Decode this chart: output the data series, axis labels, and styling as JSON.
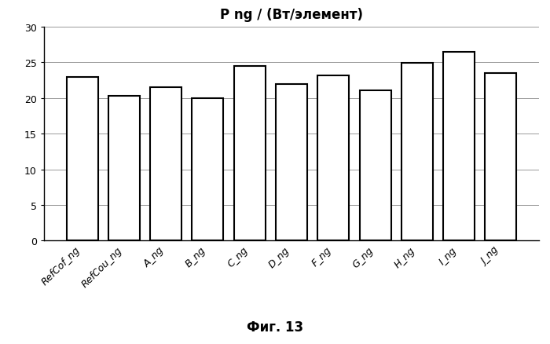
{
  "title": "P ng / (Вт/элемент)",
  "categories": [
    "RefCof_ng",
    "RefCou_ng",
    "A_ng",
    "B_ng",
    "C_ng",
    "D_ng",
    "F_ng",
    "G_ng",
    "H_ng",
    "I_ng",
    "J_ng"
  ],
  "values": [
    23.0,
    20.3,
    21.5,
    20.0,
    24.5,
    22.0,
    23.2,
    21.1,
    24.9,
    26.5,
    23.5
  ],
  "bar_color": "#ffffff",
  "bar_edgecolor": "#000000",
  "bar_linewidth": 1.5,
  "ylim": [
    0,
    30
  ],
  "yticks": [
    0,
    5,
    10,
    15,
    20,
    25,
    30
  ],
  "caption": "Фиг. 13",
  "caption_fontsize": 12,
  "title_fontsize": 12,
  "tick_fontsize": 9,
  "background_color": "#ffffff",
  "grid_color": "#999999",
  "grid_linewidth": 0.7,
  "bar_width": 0.75
}
